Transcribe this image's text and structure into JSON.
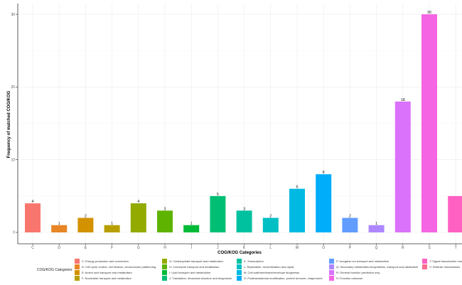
{
  "chart_data": {
    "type": "bar",
    "title": "",
    "xlabel": "COG/KOG Categories",
    "ylabel": "Frequency of matched COG/KOG",
    "ylim": [
      0,
      31.5
    ],
    "yticks": [
      0,
      10,
      20,
      30
    ],
    "grid": true,
    "categories": [
      "C",
      "D",
      "E",
      "F",
      "G",
      "H",
      "I",
      "J",
      "K",
      "L",
      "M",
      "O",
      "P",
      "Q",
      "R",
      "S",
      "T"
    ],
    "values": [
      4,
      1,
      2,
      1,
      4,
      3,
      1,
      5,
      3,
      2,
      6,
      8,
      2,
      1,
      18,
      30,
      5
    ],
    "data_labels": [
      "4",
      "1",
      "2",
      "1",
      "4",
      "3",
      "1",
      "5",
      "3",
      "2",
      "6",
      "8",
      "2",
      "1",
      "18",
      "30",
      ""
    ],
    "colors": [
      "#F8766D",
      "#E88526",
      "#D39200",
      "#B79F00",
      "#93AA00",
      "#5EB300",
      "#00BA38",
      "#00BF74",
      "#00C19F",
      "#00BFC4",
      "#00B9E3",
      "#00ADFA",
      "#619CFF",
      "#AE87FF",
      "#DB72FB",
      "#F564E3",
      "#FF61C3"
    ],
    "legend": {
      "title": "COG/KOG Categories",
      "placement": "bottom",
      "entries": [
        {
          "label": "C: Energy production and conversion",
          "color": "#F8766D"
        },
        {
          "label": "D: Cell cycle control, cell division, chromosome partitioning",
          "color": "#E88526"
        },
        {
          "label": "E: Amino acid transport and metabolism",
          "color": "#D39200"
        },
        {
          "label": "F: Nucleotide transport and metabolism",
          "color": "#B79F00"
        },
        {
          "label": "G: Carbohydrate transport and metabolism",
          "color": "#93AA00"
        },
        {
          "label": "H: Coenzyme transport and metabolism",
          "color": "#5EB300"
        },
        {
          "label": "I: Lipid transport and metabolism",
          "color": "#00BA38"
        },
        {
          "label": "J: Translation, ribosomal structure and biogenesis",
          "color": "#00BF74"
        },
        {
          "label": "K: Transcription",
          "color": "#00C19F"
        },
        {
          "label": "L: Replication, recombination and repair",
          "color": "#00BFC4"
        },
        {
          "label": "M: Cell wall/membrane/envelope biogenesis",
          "color": "#00B9E3"
        },
        {
          "label": "O: Posttranslational modification, protein turnover, chaperones",
          "color": "#00ADFA"
        },
        {
          "label": "P: Inorganic ion transport and metabolism",
          "color": "#619CFF"
        },
        {
          "label": "Q: Secondary metabolites biosynthesis, transport and catabolism",
          "color": "#AE87FF"
        },
        {
          "label": "R: General function prediction only",
          "color": "#DB72FB"
        },
        {
          "label": "S: Function unknown",
          "color": "#F564E3"
        },
        {
          "label": "T: Signal transduction mechanisms",
          "color": "#FF61C3"
        },
        {
          "label": "V: Defense mechanisms",
          "color": "#FF6C91"
        }
      ]
    }
  }
}
